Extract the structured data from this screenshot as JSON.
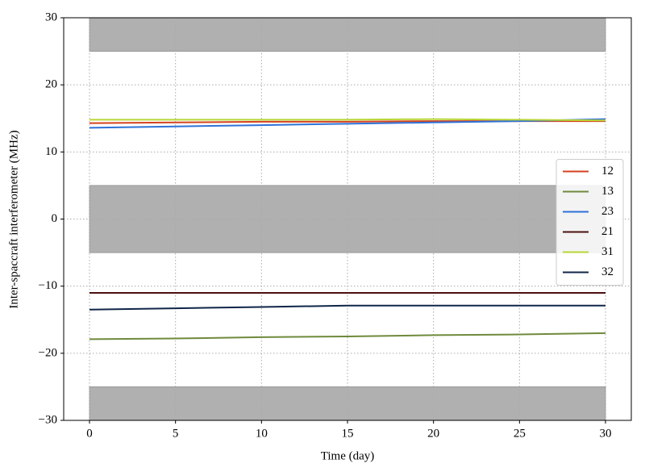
{
  "chart_data": {
    "type": "line",
    "xlabel": "Time (day)",
    "ylabel": "Inter-spaccraft interferometer (MHz)",
    "x": [
      0,
      5,
      10,
      15,
      20,
      25,
      30
    ],
    "series": [
      {
        "name": "12",
        "color": "#d4421e",
        "values": [
          14.3,
          14.4,
          14.5,
          14.5,
          14.6,
          14.6,
          14.6
        ]
      },
      {
        "name": "13",
        "color": "#6f8a3c",
        "values": [
          -17.9,
          -17.8,
          -17.6,
          -17.5,
          -17.3,
          -17.2,
          -17.0
        ]
      },
      {
        "name": "23",
        "color": "#2e72d8",
        "values": [
          13.6,
          13.8,
          14.0,
          14.2,
          14.4,
          14.6,
          14.9
        ]
      },
      {
        "name": "21",
        "color": "#4c1010",
        "values": [
          -11.0,
          -11.0,
          -11.0,
          -11.0,
          -11.0,
          -11.0,
          -11.0
        ]
      },
      {
        "name": "31",
        "color": "#b8d636",
        "values": [
          14.8,
          14.8,
          14.8,
          14.8,
          14.9,
          14.8,
          14.7
        ]
      },
      {
        "name": "32",
        "color": "#10254a",
        "values": [
          -13.5,
          -13.3,
          -13.1,
          -12.9,
          -12.9,
          -12.9,
          -12.9
        ]
      }
    ],
    "shaded_bands": [
      [
        25,
        30
      ],
      [
        -5,
        5
      ],
      [
        -30,
        -25
      ]
    ],
    "band_xlim": [
      0,
      30
    ],
    "band_color": "#b0b0b0",
    "xlim": [
      -1.5,
      31.5
    ],
    "ylim": [
      -30,
      30
    ],
    "xticks": [
      0,
      5,
      10,
      15,
      20,
      25,
      30
    ],
    "yticks": [
      {
        "value": -30,
        "label": "−30"
      },
      {
        "value": -20,
        "label": "−20"
      },
      {
        "value": -10,
        "label": "−10"
      },
      0,
      10,
      20,
      30
    ],
    "grid": true,
    "legend": "center right"
  }
}
